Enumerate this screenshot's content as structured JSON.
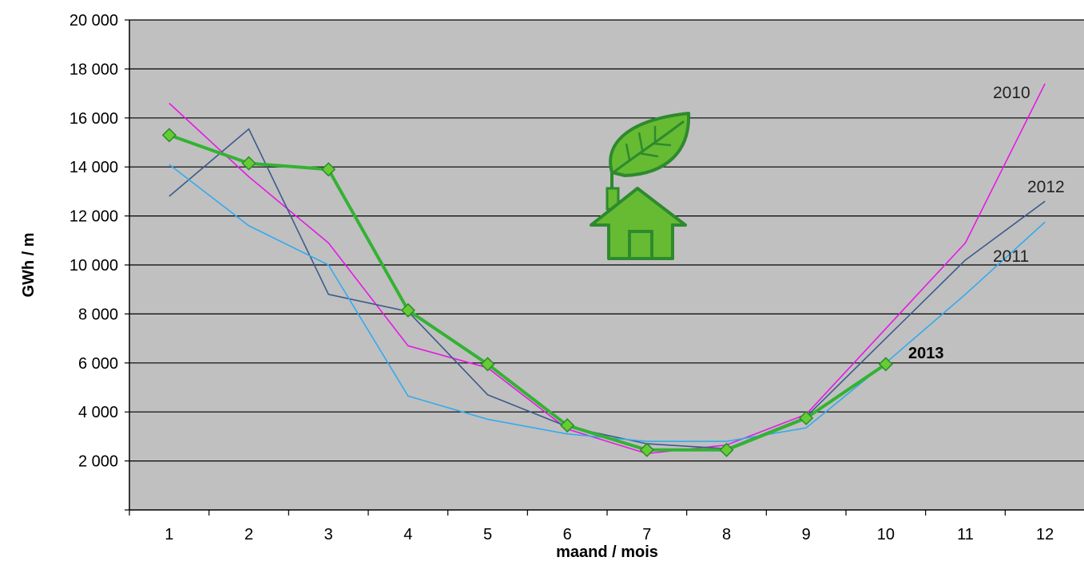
{
  "chart_data": {
    "type": "line",
    "xlabel": "maand / mois",
    "ylabel": "GWh / m",
    "categories": [
      1,
      2,
      3,
      4,
      5,
      6,
      7,
      8,
      9,
      10,
      11,
      12
    ],
    "ylim": [
      0,
      20000
    ],
    "yticks": [
      2000,
      4000,
      6000,
      8000,
      10000,
      12000,
      14000,
      16000,
      18000,
      20000
    ],
    "ytick_labels": [
      "2 000",
      "4 000",
      "6 000",
      "8 000",
      "10 000",
      "12 000",
      "14 000",
      "16 000",
      "18 000",
      "20 000"
    ],
    "grid": true,
    "background": "#c0c0c0",
    "series": [
      {
        "name": "2010",
        "color": "#e619e6",
        "values": [
          16600,
          13600,
          10900,
          6700,
          5800,
          3300,
          2300,
          2650,
          3900,
          7400,
          10900,
          17400
        ]
      },
      {
        "name": "2012",
        "color": "#3c5a8c",
        "values": [
          12800,
          15550,
          8800,
          8100,
          4700,
          3400,
          2700,
          2500,
          3800,
          7000,
          10200,
          12600
        ]
      },
      {
        "name": "2011",
        "color": "#33aaee",
        "values": [
          14100,
          11600,
          10000,
          4650,
          3700,
          3100,
          2800,
          2800,
          3350,
          6000,
          8800,
          11750
        ]
      },
      {
        "name": "2013",
        "color": "#33b233",
        "marker_color": "#66cc33",
        "values": [
          15300,
          14150,
          13900,
          8150,
          5950,
          3450,
          2450,
          2450,
          3750,
          5950,
          null,
          null
        ]
      }
    ]
  },
  "icons": {
    "logo": "leaf-house-icon",
    "logo_color": "#66bb33",
    "logo_outline": "#2d8a2d"
  }
}
